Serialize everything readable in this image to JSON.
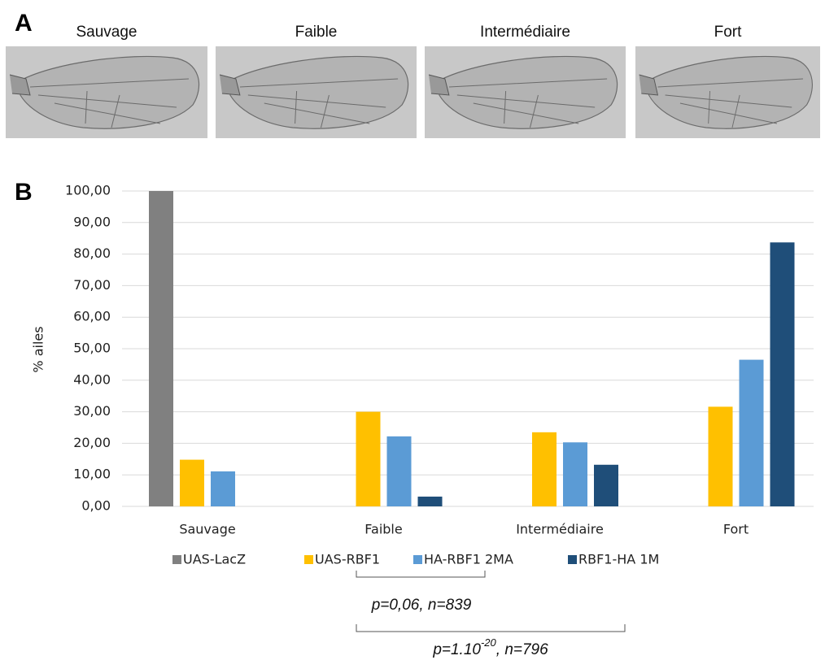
{
  "panel_a": {
    "label": "A",
    "titles": [
      "Sauvage",
      "Faible",
      "Intermédiaire",
      "Fort"
    ]
  },
  "chart_data": {
    "type": "bar",
    "panel_label": "B",
    "y_label": "% ailes",
    "categories": [
      "Sauvage",
      "Faible",
      "Intermédiaire",
      "Fort"
    ],
    "series": [
      {
        "name": "UAS-LacZ",
        "color": "#808080",
        "values": [
          100,
          0,
          0,
          0
        ]
      },
      {
        "name": "UAS-RBF1",
        "color": "#ffc000",
        "values": [
          14.8,
          30.0,
          23.5,
          31.6
        ]
      },
      {
        "name": "HA-RBF1 2MA",
        "color": "#5b9bd5",
        "values": [
          11.1,
          22.2,
          20.3,
          46.5
        ]
      },
      {
        "name": "RBF1-HA 1M",
        "color": "#1f4e79",
        "values": [
          0,
          3.1,
          13.2,
          83.7
        ]
      }
    ],
    "ylim": [
      0,
      100
    ],
    "yticks": [
      {
        "value": 0,
        "label": "0,00"
      },
      {
        "value": 10,
        "label": "10,00"
      },
      {
        "value": 20,
        "label": "20,00"
      },
      {
        "value": 30,
        "label": "30,00"
      },
      {
        "value": 40,
        "label": "40,00"
      },
      {
        "value": 50,
        "label": "50,00"
      },
      {
        "value": 60,
        "label": "60,00"
      },
      {
        "value": 70,
        "label": "70,00"
      },
      {
        "value": 80,
        "label": "80,00"
      },
      {
        "value": 90,
        "label": "90,00"
      },
      {
        "value": 100,
        "label": "100,00"
      }
    ],
    "grid": true,
    "legend": "bottom",
    "annotations": [
      {
        "text": "p=0,06, n=839"
      },
      {
        "text": "p=1.10",
        "superscript": "-20",
        "suffix": ", n=796"
      }
    ]
  }
}
